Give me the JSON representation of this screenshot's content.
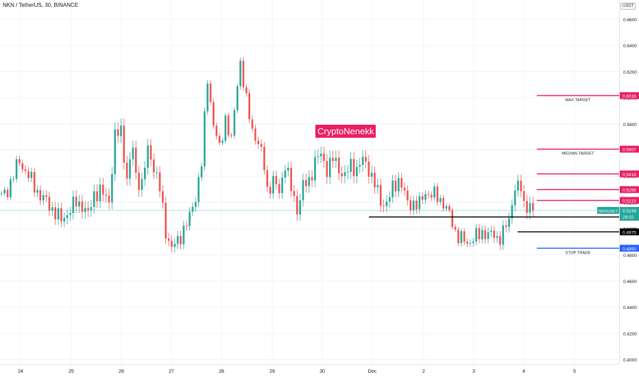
{
  "header": {
    "title": "NKN / TetherUS, 30, BINANCE",
    "currency": "USDT"
  },
  "watermark": "CryptoNenekk",
  "colors": {
    "up": "#26a69a",
    "down": "#ef5350",
    "target": "#e91e63",
    "stop": "#2962ff",
    "level": "#000000",
    "grid": "#f0f3fa"
  },
  "chart_data": {
    "type": "candlestick",
    "title": "NKN / TetherUS, 30, BINANCE",
    "ylim": [
      0.395,
      0.669
    ],
    "y_ticks": [
      "0.6600",
      "0.6400",
      "0.6200",
      "0.6000",
      "0.5800",
      "0.5600",
      "0.5400",
      "0.5200",
      "0.5000",
      "0.4800",
      "0.4600",
      "0.4400",
      "0.4200",
      "0.4000"
    ],
    "x_ticks": [
      "24",
      "25",
      "26",
      "27",
      "28",
      "29",
      "30",
      "Dec",
      "2",
      "3",
      "4",
      "5"
    ],
    "grid": true,
    "approximate_price_path": [
      [
        0,
        0.524
      ],
      [
        2,
        0.53
      ],
      [
        6,
        0.552
      ],
      [
        9,
        0.54
      ],
      [
        13,
        0.525
      ],
      [
        16,
        0.518
      ],
      [
        20,
        0.506
      ],
      [
        22,
        0.512
      ],
      [
        25,
        0.52
      ],
      [
        27,
        0.518
      ],
      [
        29,
        0.51
      ],
      [
        31,
        0.527
      ],
      [
        33,
        0.528
      ],
      [
        36,
        0.522
      ],
      [
        38,
        0.57
      ],
      [
        40,
        0.575
      ],
      [
        42,
        0.538
      ],
      [
        44,
        0.562
      ],
      [
        45,
        0.54
      ],
      [
        47,
        0.534
      ],
      [
        49,
        0.56
      ],
      [
        51,
        0.548
      ],
      [
        53,
        0.53
      ],
      [
        55,
        0.498
      ],
      [
        57,
        0.485
      ],
      [
        59,
        0.49
      ],
      [
        61,
        0.5
      ],
      [
        63,
        0.508
      ],
      [
        65,
        0.525
      ],
      [
        67,
        0.55
      ],
      [
        69,
        0.615
      ],
      [
        71,
        0.58
      ],
      [
        73,
        0.56
      ],
      [
        75,
        0.585
      ],
      [
        77,
        0.566
      ],
      [
        79,
        0.612
      ],
      [
        80,
        0.628
      ],
      [
        82,
        0.596
      ],
      [
        84,
        0.576
      ],
      [
        86,
        0.565
      ],
      [
        88,
        0.548
      ],
      [
        89,
        0.53
      ],
      [
        91,
        0.536
      ],
      [
        93,
        0.528
      ],
      [
        95,
        0.55
      ],
      [
        97,
        0.53
      ],
      [
        99,
        0.515
      ],
      [
        101,
        0.532
      ],
      [
        103,
        0.536
      ],
      [
        105,
        0.552
      ],
      [
        107,
        0.556
      ],
      [
        109,
        0.546
      ],
      [
        111,
        0.553
      ],
      [
        113,
        0.546
      ],
      [
        115,
        0.54
      ],
      [
        117,
        0.548
      ],
      [
        119,
        0.546
      ],
      [
        121,
        0.552
      ],
      [
        123,
        0.546
      ],
      [
        125,
        0.534
      ],
      [
        127,
        0.52
      ],
      [
        129,
        0.52
      ],
      [
        131,
        0.53
      ],
      [
        133,
        0.538
      ],
      [
        134,
        0.534
      ],
      [
        136,
        0.518
      ],
      [
        138,
        0.52
      ],
      [
        140,
        0.518
      ],
      [
        142,
        0.528
      ],
      [
        144,
        0.526
      ],
      [
        146,
        0.524
      ],
      [
        148,
        0.52
      ],
      [
        150,
        0.51
      ],
      [
        152,
        0.498
      ],
      [
        154,
        0.492
      ],
      [
        156,
        0.488
      ],
      [
        158,
        0.494
      ],
      [
        160,
        0.494
      ],
      [
        162,
        0.498
      ],
      [
        164,
        0.495
      ],
      [
        166,
        0.492
      ],
      [
        168,
        0.498
      ],
      [
        170,
        0.505
      ],
      [
        172,
        0.534
      ],
      [
        174,
        0.53
      ],
      [
        175,
        0.516
      ],
      [
        177,
        0.52
      ],
      [
        178,
        0.512
      ]
    ],
    "price_lines": [
      {
        "price": 0.6016,
        "label": "0.6016",
        "annotation": "MAX TARGET",
        "kind": "target"
      },
      {
        "price": 0.5607,
        "label": "0.5607",
        "annotation": "MEDIAN TARGET",
        "kind": "target"
      },
      {
        "price": 0.5418,
        "label": "0.5418",
        "annotation": "",
        "kind": "target"
      },
      {
        "price": 0.5298,
        "label": "0.5298",
        "annotation": "",
        "kind": "target"
      },
      {
        "price": 0.5215,
        "label": "0.5215",
        "annotation": "",
        "kind": "target"
      },
      {
        "price": 0.5089,
        "label": "0.5089",
        "annotation": "",
        "kind": "level"
      },
      {
        "price": 0.4975,
        "label": "0.4975",
        "annotation": "",
        "kind": "level"
      },
      {
        "price": 0.485,
        "label": "0.4850",
        "annotation": "STOP TRADE",
        "kind": "stop"
      }
    ],
    "current_price": {
      "symbol": "NKNUSDT",
      "price": "0.5139",
      "countdown": "29:02",
      "value": 0.5139
    }
  }
}
